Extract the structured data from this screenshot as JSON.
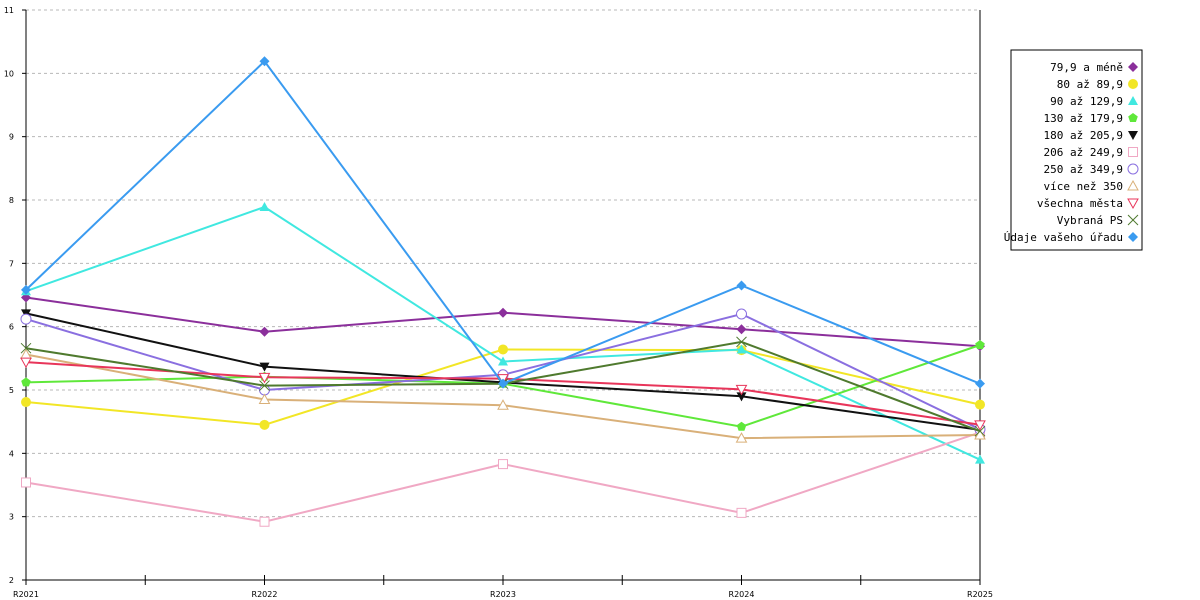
{
  "chart_data": {
    "type": "line",
    "categories": [
      "R2021",
      "R2022",
      "R2023",
      "R2024",
      "R2025"
    ],
    "ylim": [
      2,
      11
    ],
    "yticks": [
      2,
      3,
      4,
      5,
      6,
      7,
      8,
      9,
      10,
      11
    ],
    "grid": true,
    "legend_position": "top-right",
    "series": [
      {
        "name": "79,9 a méně",
        "color": "#8b2f9b",
        "marker": "diamond",
        "values": [
          6.46,
          5.92,
          6.22,
          5.96,
          5.69
        ]
      },
      {
        "name": "80 až 89,9",
        "color": "#f2e626",
        "marker": "circle",
        "values": [
          4.81,
          4.45,
          5.64,
          5.63,
          4.77
        ]
      },
      {
        "name": "90 až 129,9",
        "color": "#40e8e0",
        "marker": "triangle-up",
        "values": [
          6.56,
          7.89,
          5.45,
          5.64,
          3.9
        ]
      },
      {
        "name": "130 až 179,9",
        "color": "#5fe83a",
        "marker": "pentagon",
        "values": [
          5.12,
          5.21,
          5.1,
          4.42,
          5.71
        ]
      },
      {
        "name": "180 až 205,9",
        "color": "#111111",
        "marker": "triangle-down",
        "values": [
          6.21,
          5.37,
          5.12,
          4.9,
          4.37
        ]
      },
      {
        "name": "206 až 249,9",
        "color": "#f0a8c4",
        "marker": "square-open",
        "values": [
          3.54,
          2.92,
          3.83,
          3.06,
          4.33
        ]
      },
      {
        "name": "250 až 349,9",
        "color": "#8a6fe0",
        "marker": "circle-open",
        "values": [
          6.12,
          5.0,
          5.24,
          6.2,
          4.38
        ]
      },
      {
        "name": "více než 350",
        "color": "#d9b079",
        "marker": "triangle-up-open",
        "values": [
          5.56,
          4.85,
          4.76,
          4.24,
          4.29
        ]
      },
      {
        "name": "všechna města",
        "color": "#e8355a",
        "marker": "triangle-down-open",
        "values": [
          5.44,
          5.2,
          5.18,
          5.01,
          4.45
        ]
      },
      {
        "name": "Vybraná PS",
        "color": "#4f7a2e",
        "marker": "x",
        "values": [
          5.66,
          5.07,
          5.1,
          5.76,
          4.35
        ]
      },
      {
        "name": "Údaje vašeho úřadu",
        "color": "#3a9bf0",
        "marker": "diamond",
        "values": [
          6.58,
          10.19,
          5.1,
          6.65,
          5.1
        ]
      }
    ]
  }
}
